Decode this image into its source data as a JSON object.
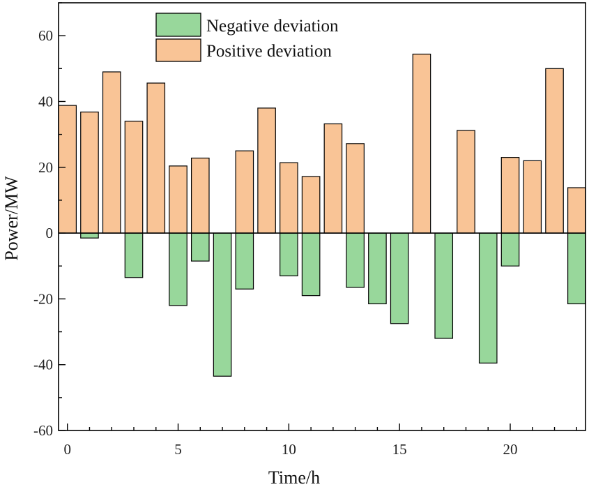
{
  "chart_data": {
    "type": "bar",
    "xlabel": "Time/h",
    "ylabel": "Power/MW",
    "xlim": [
      -0.4,
      23.4
    ],
    "ylim": [
      -60,
      70
    ],
    "xticks": [
      0,
      5,
      10,
      15,
      20
    ],
    "yticks": [
      -60,
      -40,
      -20,
      0,
      20,
      40,
      60
    ],
    "grid": false,
    "legend_position": "top-center",
    "x": [
      0,
      1,
      2,
      3,
      4,
      5,
      6,
      7,
      8,
      9,
      10,
      11,
      12,
      13,
      14,
      15,
      16,
      17,
      18,
      19,
      20,
      21,
      22,
      23
    ],
    "series": [
      {
        "name": "Negative deviation",
        "color": "#98d79b",
        "values": [
          0,
          -1.5,
          0,
          -13.5,
          0,
          -22,
          -8.5,
          -43.5,
          -17,
          0,
          -13,
          -19,
          0,
          -16.5,
          -21.5,
          -27.5,
          0,
          -32,
          0,
          -39.5,
          -10,
          0,
          0,
          -21.5
        ]
      },
      {
        "name": "Positive deviation",
        "color": "#f9c496",
        "values": [
          38.8,
          36.8,
          49,
          34,
          45.6,
          20.4,
          22.8,
          0,
          25,
          38,
          21.4,
          17.2,
          33.2,
          27.2,
          0,
          0,
          54.4,
          0,
          31.2,
          0,
          23,
          22,
          50,
          13.8
        ]
      }
    ]
  }
}
